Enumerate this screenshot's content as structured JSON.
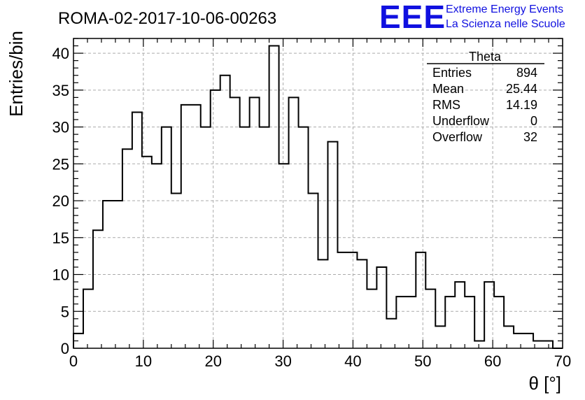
{
  "chart_data": {
    "type": "bar",
    "title": "ROMA-02-2017-10-06-00263",
    "xlabel": "θ [°]",
    "ylabel": "Entries/bin",
    "xlim": [
      0,
      70
    ],
    "ylim": [
      0,
      42
    ],
    "bin_width": 1.4,
    "x_ticks": [
      0,
      10,
      20,
      30,
      40,
      50,
      60,
      70
    ],
    "y_ticks": [
      0,
      5,
      10,
      15,
      20,
      25,
      30,
      35,
      40
    ],
    "grid": true,
    "values": [
      2,
      8,
      16,
      20,
      20,
      27,
      32,
      26,
      25,
      30,
      21,
      33,
      33,
      30,
      35,
      37,
      34,
      30,
      34,
      30,
      41,
      25,
      34,
      30,
      21,
      12,
      28,
      13,
      13,
      12,
      8,
      11,
      4,
      7,
      7,
      13,
      8,
      3,
      7,
      9,
      7,
      1,
      9,
      7,
      3,
      2,
      2,
      1,
      1,
      0
    ],
    "stats": {
      "name": "Theta",
      "rows": [
        {
          "label": "Entries",
          "value": "894"
        },
        {
          "label": "Mean",
          "value": "25.44"
        },
        {
          "label": "RMS",
          "value": "14.19"
        },
        {
          "label": "Underflow",
          "value": "0"
        },
        {
          "label": "Overflow",
          "value": "32"
        }
      ]
    },
    "logo": {
      "text": "EEE",
      "line1": "Extreme Energy Events",
      "line2": "La Scienza nelle Scuole",
      "color": "#1010e0"
    },
    "line_color": "#000000",
    "grid_color": "#aaaaaa"
  }
}
